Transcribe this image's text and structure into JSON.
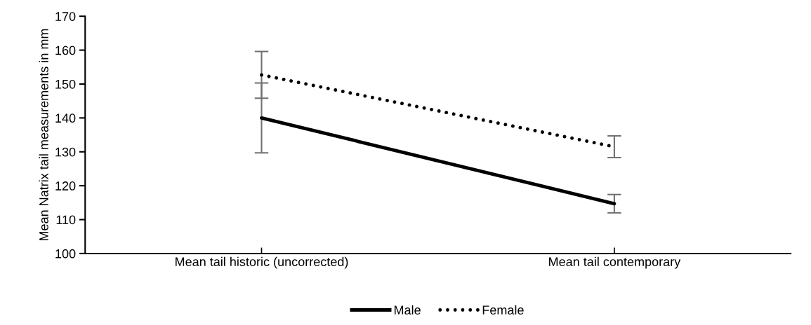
{
  "chart_data": {
    "type": "line",
    "ylabel": "Mean Natrix tail measurements in mm",
    "categories": [
      "Mean tail historic (uncorrected)",
      "Mean tail contemporary"
    ],
    "series": [
      {
        "name": "Male",
        "color": "#000000",
        "values": [
          140.0,
          114.7
        ],
        "errors": [
          10.3,
          2.7
        ],
        "line_style": "solid"
      },
      {
        "name": "Female",
        "color": "#000000",
        "values": [
          152.7,
          131.5
        ],
        "errors": [
          6.9,
          3.2
        ],
        "line_style": "dotted"
      }
    ],
    "ylim": [
      100,
      170
    ],
    "yticks": [
      100,
      110,
      120,
      130,
      140,
      150,
      160,
      170
    ],
    "grid": false,
    "legend": "bottom",
    "marker": "none"
  }
}
